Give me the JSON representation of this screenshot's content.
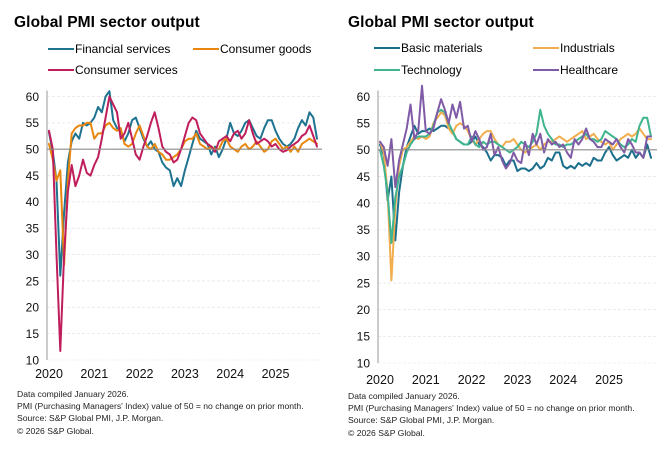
{
  "charts": [
    {
      "title": "Global PMI sector output",
      "legend": [
        {
          "label": "Financial services",
          "color": "#1e7390"
        },
        {
          "label": "Consumer goods",
          "color": "#e8860f"
        },
        {
          "label": "Consumer services",
          "color": "#c01d5c"
        }
      ],
      "footnotes": [
        "Data compiled January 2026.",
        "PMI (Purchasing Managers' Index) value of 50 = no change on prior month.",
        "Source: S&P Global PMI, J.P. Morgan.",
        "© 2026 S&P Global."
      ]
    },
    {
      "title": "Global PMI sector output",
      "legend": [
        {
          "label": "Basic materials",
          "color": "#1b6f8c"
        },
        {
          "label": "Industrials",
          "color": "#f2ad4e"
        },
        {
          "label": "Technology",
          "color": "#3fb48e"
        },
        {
          "label": "Healthcare",
          "color": "#7f5aa6"
        }
      ],
      "footnotes": [
        "Data compiled January 2026.",
        "PMI (Purchasing Managers' Index) value of 50 = no change on prior month.",
        "Source: S&P Global PMI, J.P. Morgan.",
        "© 2026 S&P Global."
      ]
    }
  ],
  "chart_data": [
    {
      "type": "line",
      "title": "Global PMI sector output",
      "xlabel": "",
      "ylabel": "",
      "x_start": "2020-01",
      "x_frequency": "monthly",
      "x_ticks": [
        "2020",
        "2021",
        "2022",
        "2023",
        "2024",
        "2025"
      ],
      "y_ticks": [
        10,
        15,
        20,
        25,
        30,
        35,
        40,
        45,
        50,
        55,
        60
      ],
      "ylim": [
        10,
        62
      ],
      "reference_line": 50,
      "grid": "horizontal",
      "legend_position": "top",
      "series": [
        {
          "name": "Financial services",
          "color": "#1e7390",
          "values": [
            53.2,
            49.5,
            44.0,
            26.0,
            38.0,
            47.5,
            51.5,
            53.0,
            52.0,
            55.0,
            54.5,
            55.0,
            56.0,
            58.0,
            57.0,
            60.0,
            61.0,
            55.5,
            54.0,
            53.5,
            51.5,
            53.0,
            55.5,
            56.0,
            54.0,
            52.0,
            50.5,
            51.5,
            50.0,
            49.5,
            47.5,
            46.5,
            46.0,
            43.0,
            44.5,
            43.0,
            46.0,
            48.5,
            51.0,
            53.5,
            52.0,
            51.5,
            51.0,
            49.0,
            50.5,
            48.5,
            50.0,
            52.0,
            55.0,
            53.0,
            52.5,
            53.5,
            55.0,
            55.5,
            54.0,
            52.5,
            52.0,
            54.0,
            55.5,
            55.5,
            53.5,
            52.0,
            51.0,
            50.5,
            51.0,
            52.0,
            54.0,
            55.5,
            54.5,
            57.0,
            56.0,
            52.0
          ]
        },
        {
          "name": "Consumer goods",
          "color": "#e8860f",
          "values": [
            51.0,
            48.0,
            44.0,
            46.0,
            28.0,
            44.0,
            53.0,
            54.0,
            54.5,
            54.5,
            55.0,
            55.0,
            52.0,
            53.0,
            53.0,
            54.5,
            55.0,
            54.0,
            53.5,
            54.0,
            51.0,
            50.5,
            51.0,
            53.0,
            54.5,
            52.5,
            50.5,
            50.0,
            51.0,
            49.5,
            49.0,
            48.0,
            48.0,
            48.5,
            49.0,
            50.0,
            51.5,
            52.0,
            52.0,
            53.0,
            51.0,
            50.5,
            50.0,
            50.5,
            50.0,
            50.0,
            51.5,
            52.0,
            50.5,
            50.0,
            49.5,
            50.5,
            51.0,
            50.0,
            50.5,
            51.5,
            50.5,
            49.5,
            50.0,
            51.5,
            52.0,
            51.0,
            50.0,
            50.5,
            49.5,
            50.5,
            49.5,
            51.0,
            51.5,
            52.0,
            51.5,
            51.0
          ]
        },
        {
          "name": "Consumer services",
          "color": "#c01d5c",
          "values": [
            53.5,
            50.0,
            30.0,
            11.7,
            30.0,
            42.0,
            47.0,
            43.0,
            45.0,
            48.0,
            45.5,
            45.0,
            47.0,
            48.5,
            52.0,
            56.0,
            60.0,
            58.5,
            57.0,
            52.0,
            53.0,
            55.0,
            52.0,
            49.0,
            48.0,
            50.5,
            52.5,
            55.0,
            57.0,
            54.0,
            50.5,
            49.5,
            49.0,
            47.5,
            48.0,
            50.0,
            52.5,
            55.0,
            56.0,
            55.5,
            53.0,
            52.0,
            51.0,
            50.5,
            49.5,
            51.5,
            52.0,
            52.5,
            51.5,
            53.0,
            53.5,
            52.0,
            53.0,
            55.5,
            53.0,
            51.0,
            51.5,
            52.0,
            51.5,
            50.5,
            51.0,
            50.0,
            49.5,
            49.8,
            50.5,
            51.0,
            51.5,
            52.5,
            53.0,
            54.5,
            52.5,
            50.5
          ]
        }
      ]
    },
    {
      "type": "line",
      "title": "Global PMI sector output",
      "xlabel": "",
      "ylabel": "",
      "x_start": "2020-01",
      "x_frequency": "monthly",
      "x_ticks": [
        "2020",
        "2021",
        "2022",
        "2023",
        "2024",
        "2025"
      ],
      "y_ticks": [
        10,
        15,
        20,
        25,
        30,
        35,
        40,
        45,
        50,
        55,
        60
      ],
      "ylim": [
        10,
        62
      ],
      "reference_line": 50,
      "grid": "horizontal",
      "legend_position": "top",
      "series": [
        {
          "name": "Basic materials",
          "color": "#1b6f8c",
          "values": [
            51.0,
            49.0,
            40.5,
            45.0,
            33.0,
            42.0,
            47.0,
            50.5,
            52.5,
            54.5,
            53.0,
            53.5,
            53.5,
            54.0,
            53.5,
            54.0,
            54.5,
            54.5,
            54.0,
            53.5,
            52.0,
            51.5,
            51.0,
            51.0,
            51.5,
            52.5,
            51.0,
            50.5,
            49.5,
            48.0,
            49.0,
            49.0,
            48.5,
            47.0,
            48.0,
            48.0,
            46.0,
            46.5,
            46.5,
            46.0,
            46.5,
            47.5,
            46.5,
            47.0,
            48.5,
            48.0,
            49.5,
            49.5,
            47.0,
            46.5,
            47.0,
            46.5,
            47.5,
            47.0,
            47.5,
            47.0,
            48.5,
            48.0,
            48.0,
            49.5,
            50.5,
            49.0,
            48.0,
            48.5,
            49.0,
            48.5,
            50.0,
            48.5,
            49.5,
            48.5,
            51.0,
            48.5
          ]
        },
        {
          "name": "Industrials",
          "color": "#f2ad4e",
          "values": [
            51.5,
            49.5,
            42.0,
            25.5,
            39.0,
            47.0,
            50.0,
            50.5,
            51.5,
            52.5,
            52.0,
            52.5,
            52.0,
            52.5,
            55.0,
            56.0,
            57.0,
            56.5,
            54.0,
            53.0,
            54.5,
            55.0,
            54.5,
            53.5,
            52.0,
            51.0,
            52.0,
            53.0,
            53.5,
            53.5,
            52.0,
            51.0,
            50.5,
            51.5,
            51.5,
            52.0,
            51.0,
            50.0,
            49.5,
            50.0,
            50.5,
            51.0,
            50.0,
            51.0,
            51.5,
            51.5,
            52.0,
            52.5,
            52.0,
            51.5,
            52.0,
            52.5,
            53.0,
            53.5,
            52.0,
            52.5,
            53.0,
            52.0,
            51.5,
            51.0,
            51.5,
            50.0,
            51.0,
            52.0,
            52.5,
            53.0,
            52.5,
            53.0,
            54.0,
            53.0,
            52.0,
            52.0
          ]
        },
        {
          "name": "Technology",
          "color": "#3fb48e",
          "values": [
            50.0,
            47.0,
            42.0,
            32.5,
            41.0,
            45.0,
            47.0,
            49.5,
            51.0,
            52.0,
            52.5,
            52.5,
            52.5,
            53.0,
            54.5,
            57.0,
            57.5,
            57.0,
            55.0,
            53.5,
            52.0,
            51.5,
            51.0,
            51.0,
            52.5,
            51.0,
            50.5,
            51.5,
            51.0,
            51.5,
            51.5,
            51.0,
            50.5,
            50.0,
            49.5,
            50.0,
            50.5,
            51.5,
            51.0,
            50.5,
            51.5,
            53.0,
            57.5,
            54.5,
            53.0,
            52.0,
            51.0,
            51.0,
            50.5,
            51.0,
            51.0,
            51.5,
            52.0,
            52.5,
            53.0,
            52.0,
            52.0,
            51.5,
            52.0,
            53.5,
            53.0,
            52.5,
            52.0,
            51.0,
            50.5,
            51.0,
            52.0,
            51.5,
            54.5,
            56.0,
            56.0,
            52.5
          ]
        },
        {
          "name": "Healthcare",
          "color": "#7f5aa6",
          "values": [
            51.5,
            50.5,
            47.0,
            52.0,
            43.0,
            48.0,
            51.0,
            54.0,
            58.5,
            52.0,
            53.5,
            62.0,
            53.5,
            53.0,
            54.0,
            57.0,
            59.5,
            57.5,
            55.0,
            58.5,
            56.0,
            59.0,
            54.0,
            54.5,
            51.5,
            53.5,
            52.0,
            50.0,
            50.5,
            53.0,
            49.0,
            50.5,
            48.0,
            46.5,
            47.5,
            49.5,
            48.0,
            47.5,
            51.5,
            49.0,
            53.0,
            51.0,
            53.0,
            49.5,
            52.0,
            51.0,
            51.5,
            50.5,
            51.0,
            49.5,
            48.5,
            52.0,
            51.0,
            52.0,
            54.0,
            52.0,
            51.5,
            50.5,
            50.5,
            52.0,
            51.5,
            51.0,
            52.0,
            50.5,
            49.5,
            52.0,
            51.0,
            49.5,
            49.5,
            48.5,
            52.5,
            52.5
          ]
        }
      ]
    }
  ]
}
